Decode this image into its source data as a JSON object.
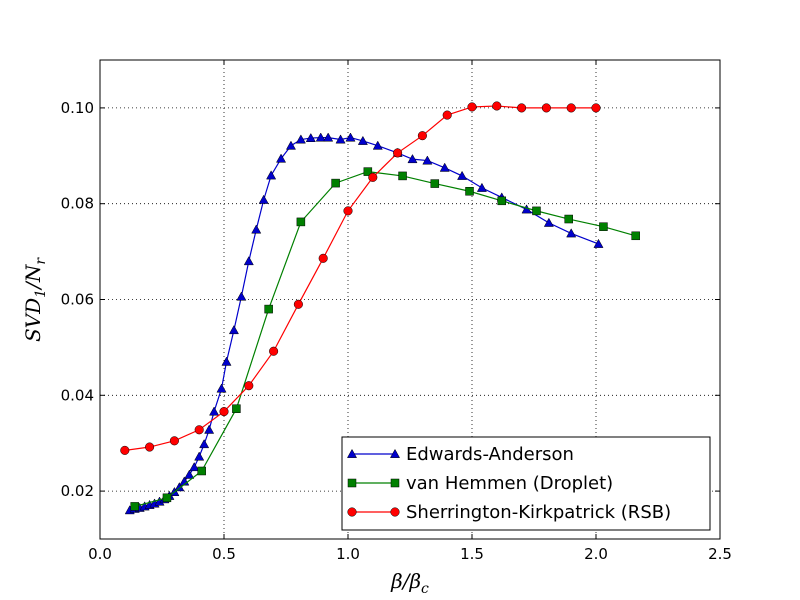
{
  "chart_data": {
    "type": "line",
    "xlabel": "β/βc",
    "ylabel": "SVD1/Nr",
    "xlim": [
      0.0,
      2.5
    ],
    "ylim": [
      0.01,
      0.11
    ],
    "x_ticks": [
      "0.0",
      "0.5",
      "1.0",
      "1.5",
      "2.0",
      "2.5"
    ],
    "y_ticks": [
      "0.02",
      "0.04",
      "0.06",
      "0.08",
      "0.10"
    ],
    "grid": true,
    "legend_position": "lower-right",
    "series": [
      {
        "name": "Edwards-Anderson",
        "color": "#0000cc",
        "marker": "triangle",
        "x": [
          0.12,
          0.14,
          0.16,
          0.18,
          0.2,
          0.22,
          0.24,
          0.26,
          0.28,
          0.3,
          0.32,
          0.34,
          0.36,
          0.38,
          0.4,
          0.42,
          0.44,
          0.46,
          0.49,
          0.51,
          0.54,
          0.57,
          0.6,
          0.63,
          0.66,
          0.69,
          0.73,
          0.77,
          0.81,
          0.85,
          0.89,
          0.92,
          0.97,
          1.01,
          1.06,
          1.12,
          1.2,
          1.26,
          1.32,
          1.39,
          1.46,
          1.54,
          1.62,
          1.72,
          1.81,
          1.9,
          2.01
        ],
        "y": [
          0.016,
          0.0163,
          0.0165,
          0.0168,
          0.0171,
          0.0174,
          0.0178,
          0.0183,
          0.019,
          0.0198,
          0.0208,
          0.022,
          0.0234,
          0.025,
          0.0272,
          0.0298,
          0.0328,
          0.0366,
          0.0414,
          0.047,
          0.0536,
          0.0606,
          0.068,
          0.0746,
          0.0808,
          0.0859,
          0.0894,
          0.0921,
          0.0934,
          0.0937,
          0.0938,
          0.0938,
          0.0934,
          0.0938,
          0.0931,
          0.0921,
          0.0906,
          0.0893,
          0.089,
          0.0875,
          0.0858,
          0.0833,
          0.0813,
          0.0788,
          0.076,
          0.0738,
          0.0716
        ]
      },
      {
        "name": "van Hemmen (Droplet)",
        "color": "#008000",
        "marker": "square",
        "x": [
          0.14,
          0.27,
          0.41,
          0.55,
          0.68,
          0.81,
          0.95,
          1.08,
          1.22,
          1.35,
          1.49,
          1.62,
          1.76,
          1.89,
          2.03,
          2.16
        ],
        "y": [
          0.0168,
          0.0186,
          0.0242,
          0.0372,
          0.058,
          0.0762,
          0.0843,
          0.0867,
          0.0858,
          0.0842,
          0.0826,
          0.0806,
          0.0785,
          0.0768,
          0.0752,
          0.0733
        ]
      },
      {
        "name": "Sherrington-Kirkpatrick (RSB)",
        "color": "#ff0000",
        "marker": "circle",
        "x": [
          0.1,
          0.2,
          0.3,
          0.4,
          0.5,
          0.6,
          0.7,
          0.8,
          0.9,
          1.0,
          1.1,
          1.2,
          1.3,
          1.4,
          1.5,
          1.6,
          1.7,
          1.8,
          1.9,
          2.0
        ],
        "y": [
          0.0285,
          0.0292,
          0.0305,
          0.0328,
          0.0366,
          0.042,
          0.0492,
          0.059,
          0.0686,
          0.0785,
          0.0855,
          0.0906,
          0.0942,
          0.0985,
          0.1002,
          0.1004,
          0.1,
          0.1,
          0.1,
          0.1
        ]
      }
    ]
  }
}
